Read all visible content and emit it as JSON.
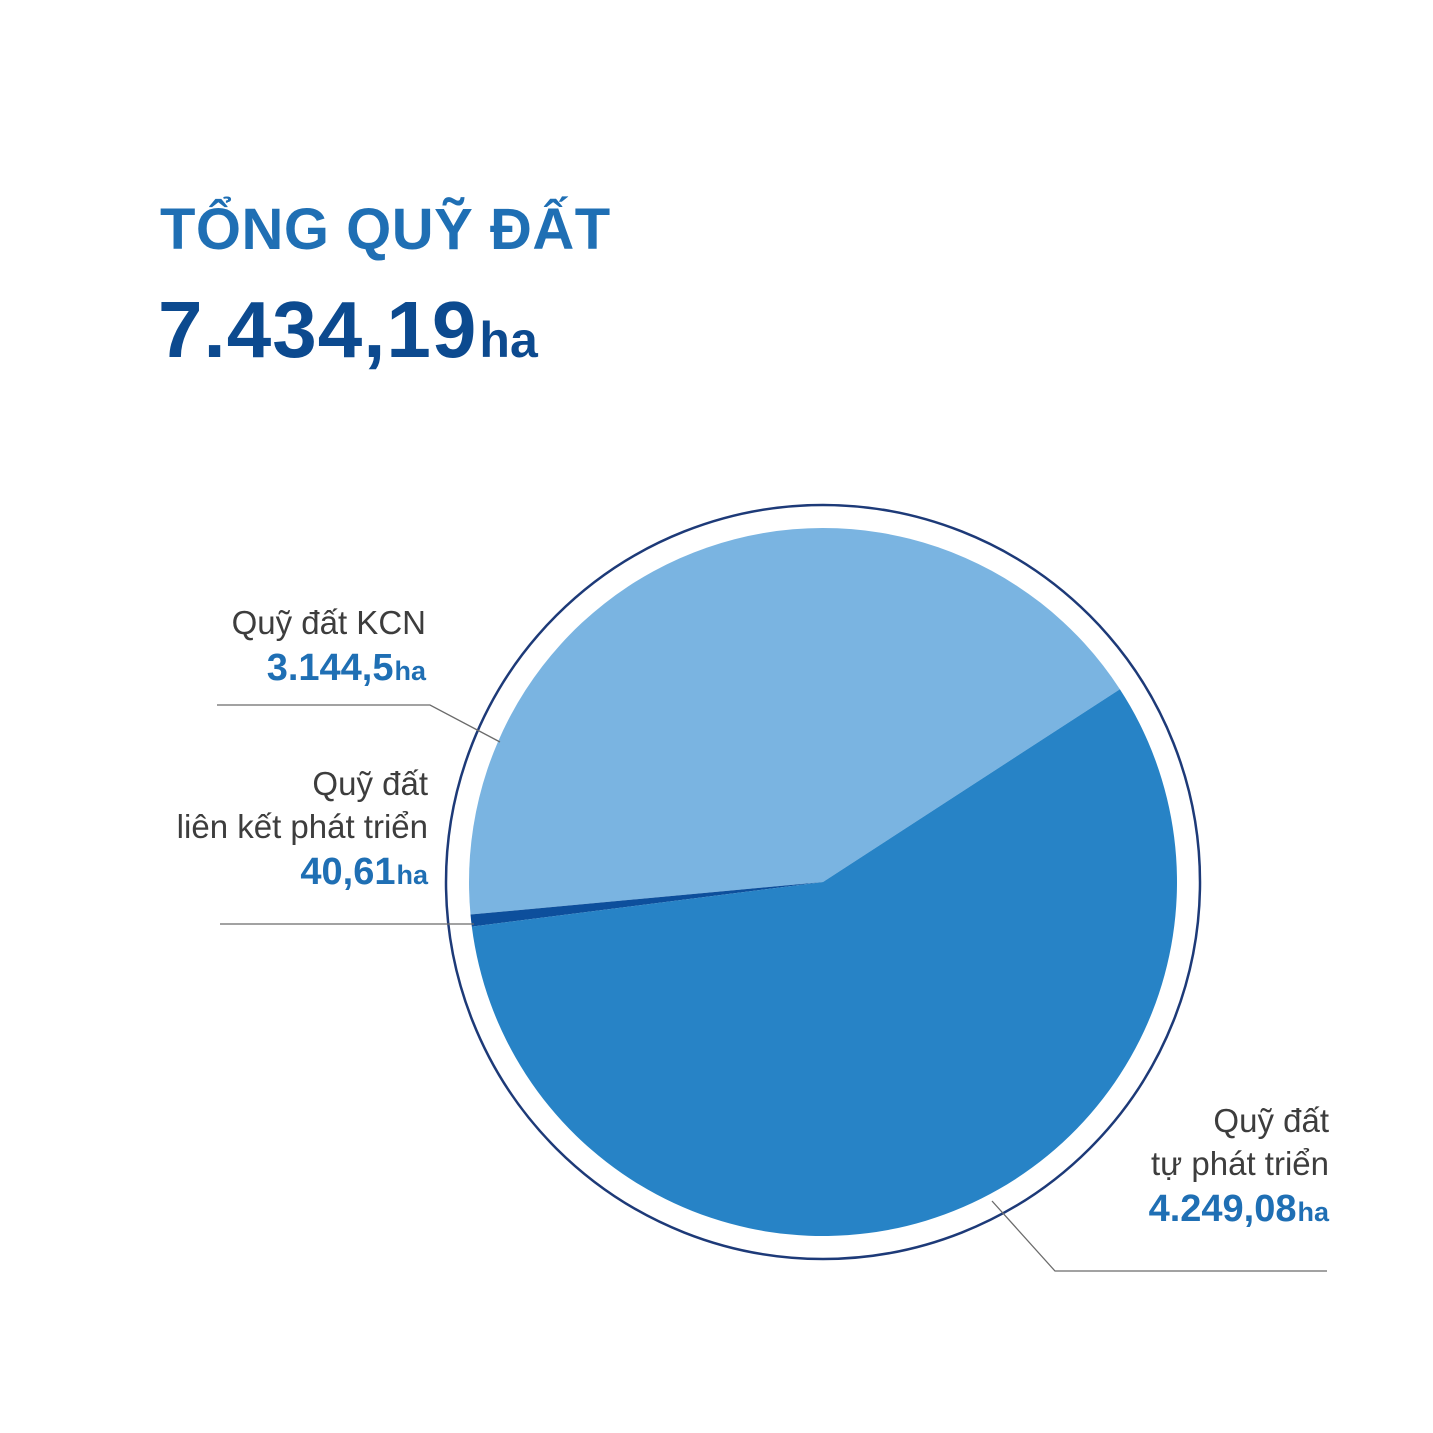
{
  "header": {
    "title": "TỔNG QUỸ ĐẤT",
    "total_value": "7.434,19",
    "total_unit": "ha"
  },
  "callouts": {
    "kcn": {
      "name_lines": [
        "Quỹ đất KCN"
      ],
      "value": "3.144,5",
      "unit": "ha"
    },
    "lien_ket": {
      "name_lines": [
        "Quỹ đất",
        "liên kết phát triển"
      ],
      "value": "40,61",
      "unit": "ha"
    },
    "tu_phat_trien": {
      "name_lines": [
        "Quỹ đất",
        "tự phát triển"
      ],
      "value": "4.249,08",
      "unit": "ha"
    }
  },
  "colors": {
    "title": "#1f6fb4",
    "total": "#0c4a8f",
    "value_label": "#1f6fb4",
    "outer_ring": "#1d3a78",
    "leader_line": "#6b6b6b"
  },
  "chart_data": {
    "type": "pie",
    "unit": "ha",
    "total": 7434.19,
    "slices": [
      {
        "label": "Quỹ đất KCN",
        "value": 3144.5,
        "color": "#7ab4e1"
      },
      {
        "label": "Quỹ đất liên kết phát triển",
        "value": 40.61,
        "color": "#0d4f9c"
      },
      {
        "label": "Quỹ đất tự phát triển",
        "value": 4249.08,
        "color": "#2783c6"
      }
    ]
  }
}
